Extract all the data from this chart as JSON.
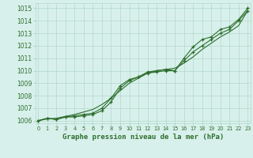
{
  "x": [
    0,
    1,
    2,
    3,
    4,
    5,
    6,
    7,
    8,
    9,
    10,
    11,
    12,
    13,
    14,
    15,
    16,
    17,
    18,
    19,
    20,
    21,
    22,
    23
  ],
  "line1": [
    1006.0,
    1006.2,
    1006.1,
    1006.3,
    1006.4,
    1006.5,
    1006.6,
    1007.0,
    1007.8,
    1008.8,
    1009.3,
    1009.5,
    1009.9,
    1010.0,
    1010.1,
    1010.0,
    1011.0,
    1011.9,
    1012.5,
    1012.7,
    1013.3,
    1013.5,
    1014.1,
    1015.0
  ],
  "line2": [
    1006.0,
    1006.2,
    1006.1,
    1006.3,
    1006.3,
    1006.4,
    1006.5,
    1006.8,
    1007.5,
    1008.6,
    1009.2,
    1009.5,
    1009.8,
    1009.9,
    1010.0,
    1010.0,
    1010.8,
    1011.5,
    1012.0,
    1012.5,
    1013.0,
    1013.3,
    1014.0,
    1014.8
  ],
  "line_smooth": [
    1006.0,
    1006.15,
    1006.2,
    1006.35,
    1006.5,
    1006.7,
    1006.9,
    1007.3,
    1007.8,
    1008.4,
    1009.0,
    1009.4,
    1009.8,
    1010.0,
    1010.1,
    1010.2,
    1010.6,
    1011.1,
    1011.7,
    1012.2,
    1012.7,
    1013.1,
    1013.6,
    1014.8
  ],
  "bg_color": "#d8f0eb",
  "grid_color": "#b0d8cc",
  "line_color": "#2d6e2d",
  "ylabel_vals": [
    1006,
    1007,
    1008,
    1009,
    1010,
    1011,
    1012,
    1013,
    1014,
    1015
  ],
  "xlabel": "Graphe pression niveau de la mer (hPa)",
  "ymin": 1005.8,
  "ymax": 1015.4,
  "xmin": -0.3,
  "xmax": 23.3
}
